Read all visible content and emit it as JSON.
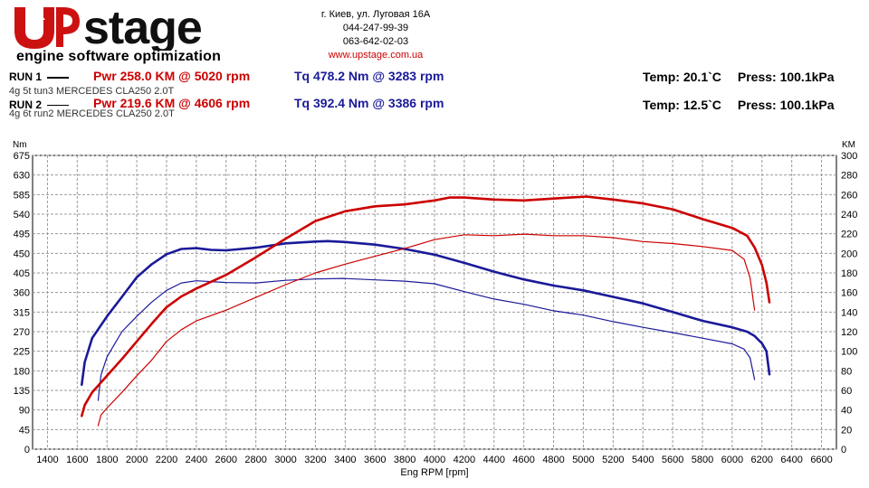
{
  "header": {
    "logo_text": "UPstage",
    "logo_subtitle": "engine software optimization",
    "address": "г. Киев, ул. Луговая 16А",
    "phone1": "044-247-99-39",
    "phone2": "063-642-02-03",
    "website": "www.upstage.com.ua"
  },
  "runs": [
    {
      "label": "RUN 1",
      "pwr": "Pwr  258.0 KM @ 5020 rpm",
      "tq": "Tq 478.2 Nm @ 3283 rpm",
      "desc": "4g 5t tun3 MERCEDES CLA250 2.0T",
      "temp": "Temp: 20.1`C",
      "press": "Press: 100.1kPa"
    },
    {
      "label": "RUN 2",
      "pwr": "Pwr  219.6 KM @ 4606 rpm",
      "tq": "Tq 392.4 Nm @ 3386 rpm",
      "desc": "4g 6t run2 MERCEDES CLA250 2.0T",
      "temp": "Temp: 12.5`C",
      "press": "Press: 100.1kPa"
    }
  ],
  "colors": {
    "power": "#cc0000",
    "torque": "#1a1a99",
    "grid": "#9a9a9a"
  },
  "chart_data": {
    "type": "line",
    "xlabel": "Eng RPM [rpm]",
    "ylabel_left": "Nm",
    "ylabel_right": "KM",
    "xlim": [
      1300,
      6700
    ],
    "ylim_left": [
      0,
      675
    ],
    "ylim_right": [
      0,
      300
    ],
    "x_ticks": [
      1400,
      1600,
      1800,
      2000,
      2200,
      2400,
      2600,
      2800,
      3000,
      3200,
      3400,
      3600,
      3800,
      4000,
      4200,
      4400,
      4600,
      4800,
      5000,
      5200,
      5400,
      5600,
      5800,
      6000,
      6200,
      6400,
      6600
    ],
    "y_ticks_left": [
      0,
      45,
      90,
      135,
      180,
      225,
      270,
      315,
      360,
      405,
      450,
      495,
      540,
      585,
      630,
      675
    ],
    "y_ticks_right": [
      0,
      20,
      40,
      60,
      80,
      100,
      120,
      140,
      160,
      180,
      200,
      220,
      240,
      260,
      280,
      300
    ],
    "grid": true,
    "series": [
      {
        "name": "RUN 1 Tq",
        "quantity": "torque",
        "axis": "left",
        "weight": "bold",
        "x": [
          1630,
          1650,
          1700,
          1800,
          1900,
          2000,
          2100,
          2200,
          2300,
          2400,
          2500,
          2600,
          2800,
          3000,
          3200,
          3283,
          3400,
          3600,
          3800,
          4000,
          4200,
          4400,
          4600,
          4800,
          5000,
          5200,
          5400,
          5600,
          5800,
          6000,
          6100,
          6150,
          6200,
          6230,
          6250
        ],
        "y": [
          148,
          200,
          255,
          305,
          350,
          395,
          425,
          448,
          460,
          462,
          458,
          457,
          463,
          473,
          477,
          478.2,
          476,
          470,
          460,
          447,
          428,
          408,
          390,
          376,
          365,
          350,
          335,
          315,
          295,
          280,
          270,
          260,
          243,
          225,
          172
        ]
      },
      {
        "name": "RUN 2 Tq",
        "quantity": "torque",
        "axis": "left",
        "weight": "thin",
        "x": [
          1740,
          1760,
          1800,
          1900,
          2000,
          2100,
          2200,
          2300,
          2400,
          2600,
          2800,
          3000,
          3200,
          3386,
          3600,
          3800,
          4000,
          4200,
          4400,
          4600,
          4800,
          5000,
          5200,
          5400,
          5600,
          5800,
          6000,
          6080,
          6120,
          6150
        ],
        "y": [
          112,
          170,
          212,
          270,
          305,
          338,
          365,
          382,
          387,
          383,
          382,
          388,
          391,
          392.4,
          389,
          386,
          380,
          362,
          345,
          333,
          318,
          308,
          293,
          280,
          268,
          255,
          242,
          230,
          210,
          160
        ]
      },
      {
        "name": "RUN 1 Pwr",
        "quantity": "power",
        "axis": "right",
        "weight": "bold",
        "x": [
          1630,
          1650,
          1700,
          1800,
          1900,
          2000,
          2100,
          2200,
          2300,
          2400,
          2600,
          2800,
          3000,
          3200,
          3400,
          3600,
          3800,
          4000,
          4100,
          4200,
          4400,
          4600,
          4800,
          5020,
          5200,
          5400,
          5600,
          5800,
          6000,
          6100,
          6150,
          6200,
          6230,
          6250
        ],
        "y": [
          34,
          45,
          58,
          75,
          92,
          110,
          128,
          145,
          156,
          164,
          178,
          196,
          215,
          233,
          243,
          248,
          250,
          254,
          257,
          257,
          255,
          254,
          256,
          258.0,
          255,
          251,
          245,
          235,
          226,
          218,
          206,
          188,
          170,
          150
        ]
      },
      {
        "name": "RUN 2 Pwr",
        "quantity": "power",
        "axis": "right",
        "weight": "thin",
        "x": [
          1740,
          1760,
          1800,
          1900,
          2000,
          2100,
          2200,
          2300,
          2400,
          2600,
          2800,
          3000,
          3200,
          3400,
          3600,
          3800,
          4000,
          4200,
          4400,
          4606,
          4800,
          5000,
          5200,
          5400,
          5600,
          5800,
          6000,
          6080,
          6120,
          6150
        ],
        "y": [
          24,
          35,
          42,
          58,
          75,
          91,
          110,
          122,
          131,
          142,
          155,
          168,
          180,
          189,
          197,
          205,
          214,
          219,
          218,
          219.6,
          218,
          218,
          216,
          212,
          210,
          207,
          203,
          194,
          175,
          142
        ]
      }
    ]
  }
}
